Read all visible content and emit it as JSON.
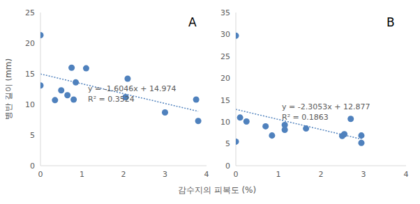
{
  "x_label": "감수지의 피복도 (%)",
  "chart_data": [
    {
      "type": "scatter",
      "title": "A",
      "y_label": "병반 길이 (mm)",
      "x": [
        0,
        0,
        0.35,
        0.5,
        0.65,
        0.75,
        0.8,
        0.85,
        1.1,
        2.05,
        2.1,
        3,
        3.75,
        3.8
      ],
      "values": [
        21.3,
        13.1,
        10.7,
        12.3,
        11.5,
        16,
        10.8,
        13.6,
        15.9,
        11.2,
        14.2,
        8.7,
        10.8,
        7.3
      ],
      "color": "#4f81bd",
      "marker": "circle",
      "xlim": [
        0,
        4
      ],
      "xticks": [
        0,
        1,
        2,
        3,
        4
      ],
      "ylim": [
        0,
        25
      ],
      "yticks": [
        0,
        5,
        10,
        15,
        20,
        25
      ],
      "grid": false,
      "trendline": {
        "slope": -1.6046,
        "intercept": 14.974,
        "equation": "y = -1.6046x + 14.974",
        "r_squared": 0.3524,
        "r_squared_label": "R² = 0.3524",
        "line_style": "dotted"
      }
    },
    {
      "type": "scatter",
      "title": "B",
      "x": [
        0,
        0,
        0.1,
        0.25,
        0.7,
        0.85,
        1.15,
        1.15,
        1.65,
        2.5,
        2.55,
        2.7,
        2.95,
        2.95
      ],
      "values": [
        29.7,
        5.5,
        11,
        10.1,
        9,
        6.9,
        9.3,
        8.2,
        8.5,
        6.8,
        7.2,
        10.7,
        6.9,
        5.2
      ],
      "color": "#4f81bd",
      "marker": "circle",
      "xlim": [
        0,
        4
      ],
      "xticks": [
        0,
        1,
        2,
        3,
        4
      ],
      "ylim": [
        0,
        35
      ],
      "yticks": [
        0,
        5,
        10,
        15,
        20,
        25,
        30,
        35
      ],
      "grid": false,
      "trendline": {
        "slope": -2.3053,
        "intercept": 12.877,
        "equation": "y = -2.3053x + 12.877",
        "r_squared": 0.1863,
        "r_squared_label": "R² = 0.1863",
        "line_style": "dotted"
      }
    }
  ]
}
